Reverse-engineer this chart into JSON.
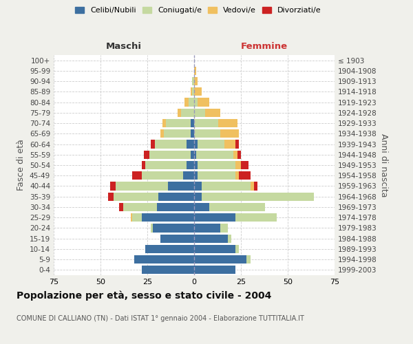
{
  "age_groups": [
    "0-4",
    "5-9",
    "10-14",
    "15-19",
    "20-24",
    "25-29",
    "30-34",
    "35-39",
    "40-44",
    "45-49",
    "50-54",
    "55-59",
    "60-64",
    "65-69",
    "70-74",
    "75-79",
    "80-84",
    "85-89",
    "90-94",
    "95-99",
    "100+"
  ],
  "birth_years": [
    "1999-2003",
    "1994-1998",
    "1989-1993",
    "1984-1988",
    "1979-1983",
    "1974-1978",
    "1969-1973",
    "1964-1968",
    "1959-1963",
    "1954-1958",
    "1949-1953",
    "1944-1948",
    "1939-1943",
    "1934-1938",
    "1929-1933",
    "1924-1928",
    "1919-1923",
    "1914-1918",
    "1909-1913",
    "1904-1908",
    "≤ 1903"
  ],
  "male": {
    "celibi": [
      28,
      32,
      26,
      18,
      22,
      28,
      20,
      19,
      14,
      6,
      4,
      2,
      4,
      2,
      2,
      0,
      0,
      0,
      0,
      0,
      0
    ],
    "coniugati": [
      0,
      0,
      0,
      0,
      1,
      5,
      18,
      24,
      28,
      22,
      22,
      22,
      17,
      14,
      13,
      7,
      3,
      1,
      1,
      0,
      0
    ],
    "vedovi": [
      0,
      0,
      0,
      0,
      0,
      1,
      0,
      0,
      0,
      0,
      0,
      0,
      0,
      2,
      2,
      2,
      2,
      1,
      0,
      0,
      0
    ],
    "divorziati": [
      0,
      0,
      0,
      0,
      0,
      0,
      2,
      3,
      3,
      5,
      2,
      3,
      2,
      0,
      0,
      0,
      0,
      0,
      0,
      0,
      0
    ]
  },
  "female": {
    "nubili": [
      22,
      28,
      22,
      18,
      14,
      22,
      8,
      4,
      4,
      2,
      2,
      1,
      2,
      0,
      0,
      0,
      0,
      0,
      0,
      0,
      0
    ],
    "coniugate": [
      0,
      2,
      2,
      2,
      4,
      22,
      30,
      60,
      26,
      20,
      20,
      20,
      14,
      14,
      13,
      6,
      2,
      0,
      0,
      0,
      0
    ],
    "vedove": [
      0,
      0,
      0,
      0,
      0,
      0,
      0,
      0,
      2,
      2,
      3,
      2,
      6,
      10,
      10,
      8,
      6,
      4,
      2,
      1,
      0
    ],
    "divorziate": [
      0,
      0,
      0,
      0,
      0,
      0,
      0,
      0,
      2,
      6,
      4,
      2,
      2,
      0,
      0,
      0,
      0,
      0,
      0,
      0,
      0
    ]
  },
  "colors": {
    "celibi": "#3d6fa0",
    "coniugati": "#c5d9a0",
    "vedovi": "#f0c060",
    "divorziati": "#cc2222"
  },
  "xlim": 75,
  "title": "Popolazione per età, sesso e stato civile - 2004",
  "subtitle": "COMUNE DI CALLIANO (TN) - Dati ISTAT 1° gennaio 2004 - Elaborazione TUTTITALIA.IT",
  "ylabel_left": "Fasce di età",
  "ylabel_right": "Anni di nascita",
  "label_maschi": "Maschi",
  "label_femmine": "Femmine",
  "legend_labels": [
    "Celibi/Nubili",
    "Coniugati/e",
    "Vedovi/e",
    "Divorziati/e"
  ],
  "bg_color": "#f0f0eb",
  "plot_bg": "#ffffff",
  "maschi_color": "#333333",
  "femmine_color": "#cc3333"
}
